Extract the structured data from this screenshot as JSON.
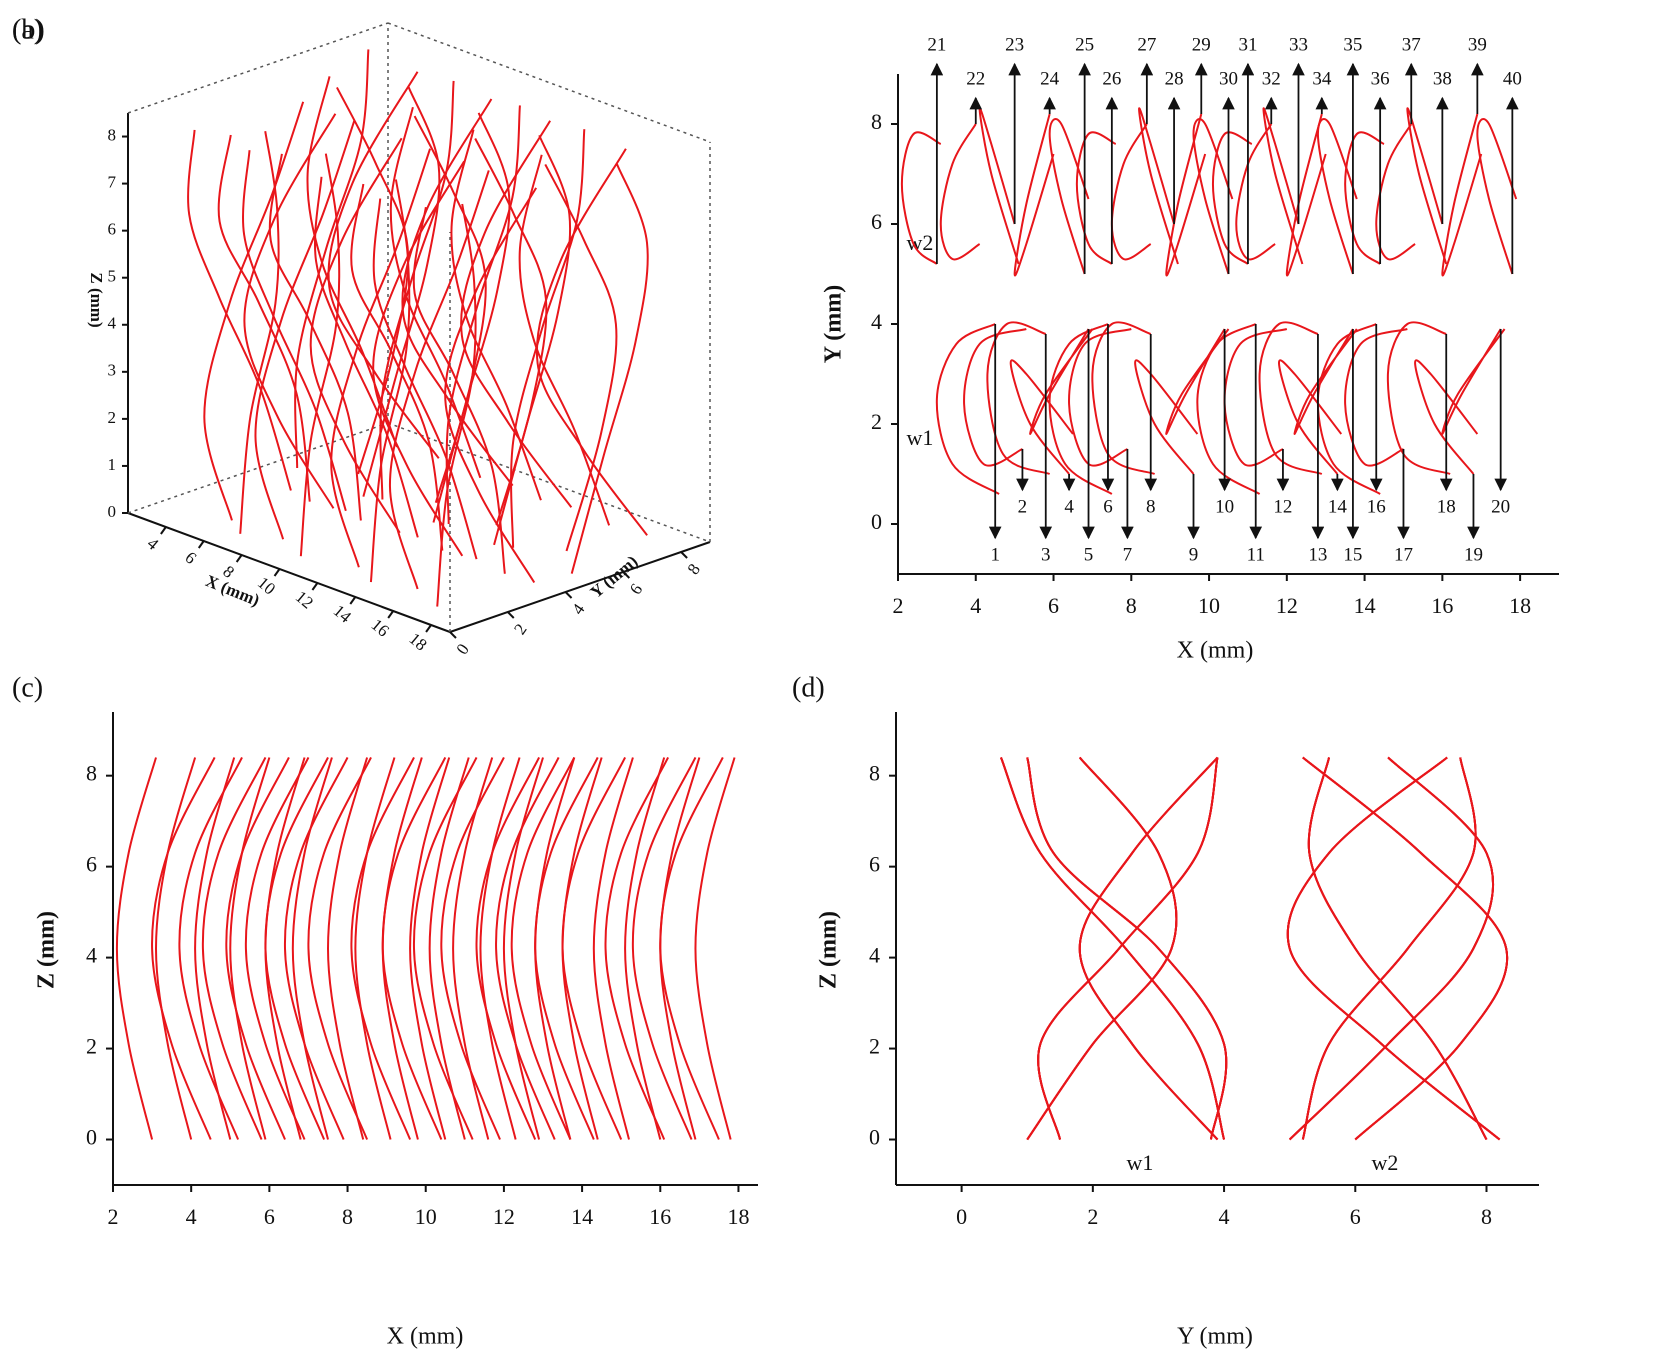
{
  "fibers": {
    "color": "#e8161b",
    "z": [
      0,
      2.1,
      4.2,
      6.3,
      8.4
    ],
    "items": [
      {
        "label": "1",
        "x": [
          4.5,
          3.5,
          3.0,
          3.4,
          4.6
        ],
        "y": [
          4.0,
          3.6,
          2.5,
          1.2,
          0.6
        ]
      },
      {
        "label": "2",
        "x": [
          5.2,
          4.2,
          3.7,
          4.1,
          5.3
        ],
        "y": [
          1.5,
          1.2,
          2.4,
          3.6,
          3.9
        ]
      },
      {
        "label": "3",
        "x": [
          5.8,
          4.8,
          4.3,
          4.7,
          5.9
        ],
        "y": [
          3.8,
          4.0,
          3.0,
          1.4,
          1.0
        ]
      },
      {
        "label": "4",
        "x": [
          6.4,
          5.4,
          4.9,
          5.3,
          6.5
        ],
        "y": [
          1.0,
          2.0,
          3.2,
          3.0,
          1.8
        ]
      },
      {
        "label": "5",
        "x": [
          6.9,
          5.9,
          5.4,
          5.8,
          7.0
        ],
        "y": [
          3.9,
          2.6,
          1.8,
          2.6,
          3.9
        ]
      },
      {
        "label": "6",
        "x": [
          7.4,
          6.4,
          5.9,
          6.3,
          7.5
        ],
        "y": [
          4.0,
          3.6,
          2.5,
          1.2,
          0.6
        ]
      },
      {
        "label": "7",
        "x": [
          7.9,
          6.9,
          6.4,
          6.8,
          8.0
        ],
        "y": [
          1.5,
          1.2,
          2.4,
          3.6,
          3.9
        ]
      },
      {
        "label": "8",
        "x": [
          8.5,
          7.5,
          7.0,
          7.4,
          8.6
        ],
        "y": [
          3.8,
          4.0,
          3.0,
          1.4,
          1.0
        ]
      },
      {
        "label": "9",
        "x": [
          9.6,
          8.6,
          8.1,
          8.5,
          9.7
        ],
        "y": [
          1.0,
          2.0,
          3.2,
          3.0,
          1.8
        ]
      },
      {
        "label": "10",
        "x": [
          10.4,
          9.4,
          8.9,
          9.3,
          10.5
        ],
        "y": [
          3.9,
          2.6,
          1.8,
          2.6,
          3.9
        ]
      },
      {
        "label": "11",
        "x": [
          11.2,
          10.2,
          9.7,
          10.1,
          11.3
        ],
        "y": [
          4.0,
          3.6,
          2.5,
          1.2,
          0.6
        ]
      },
      {
        "label": "12",
        "x": [
          11.9,
          10.9,
          10.4,
          10.8,
          12.0
        ],
        "y": [
          1.5,
          1.2,
          2.4,
          3.6,
          3.9
        ]
      },
      {
        "label": "13",
        "x": [
          12.8,
          11.8,
          11.3,
          11.7,
          12.9
        ],
        "y": [
          3.8,
          4.0,
          3.0,
          1.4,
          1.0
        ]
      },
      {
        "label": "14",
        "x": [
          13.3,
          12.3,
          11.8,
          12.2,
          13.4
        ],
        "y": [
          1.0,
          2.0,
          3.2,
          3.0,
          1.8
        ]
      },
      {
        "label": "15",
        "x": [
          13.7,
          12.7,
          12.2,
          12.6,
          13.8
        ],
        "y": [
          3.9,
          2.6,
          1.8,
          2.6,
          3.9
        ]
      },
      {
        "label": "16",
        "x": [
          14.3,
          13.3,
          12.8,
          13.2,
          14.4
        ],
        "y": [
          4.0,
          3.6,
          2.5,
          1.2,
          0.6
        ]
      },
      {
        "label": "17",
        "x": [
          15.0,
          14.0,
          13.5,
          13.9,
          15.1
        ],
        "y": [
          1.5,
          1.2,
          2.4,
          3.6,
          3.9
        ]
      },
      {
        "label": "18",
        "x": [
          16.1,
          15.1,
          14.6,
          15.0,
          16.2
        ],
        "y": [
          3.8,
          4.0,
          3.0,
          1.4,
          1.0
        ]
      },
      {
        "label": "19",
        "x": [
          16.8,
          15.8,
          15.3,
          15.7,
          16.9
        ],
        "y": [
          1.0,
          2.0,
          3.2,
          3.0,
          1.8
        ]
      },
      {
        "label": "20",
        "x": [
          17.5,
          16.5,
          16.0,
          16.4,
          17.6
        ],
        "y": [
          3.9,
          2.6,
          1.8,
          2.6,
          3.9
        ]
      },
      {
        "label": "21",
        "x": [
          3.0,
          2.4,
          2.1,
          2.4,
          3.1
        ],
        "y": [
          5.2,
          5.6,
          6.8,
          7.8,
          7.6
        ]
      },
      {
        "label": "22",
        "x": [
          4.0,
          3.4,
          3.1,
          3.4,
          4.1
        ],
        "y": [
          8.0,
          7.2,
          6.0,
          5.3,
          5.6
        ]
      },
      {
        "label": "23",
        "x": [
          5.0,
          4.4,
          4.1,
          4.4,
          5.1
        ],
        "y": [
          6.0,
          7.6,
          8.3,
          7.0,
          5.2
        ]
      },
      {
        "label": "24",
        "x": [
          5.9,
          5.3,
          5.0,
          5.3,
          6.0
        ],
        "y": [
          8.2,
          6.4,
          5.0,
          5.6,
          7.4
        ]
      },
      {
        "label": "25",
        "x": [
          6.8,
          6.2,
          5.9,
          6.2,
          6.9
        ],
        "y": [
          5.0,
          6.5,
          7.8,
          8.0,
          6.5
        ]
      },
      {
        "label": "26",
        "x": [
          7.5,
          6.9,
          6.6,
          6.9,
          7.6
        ],
        "y": [
          5.2,
          5.6,
          6.8,
          7.8,
          7.6
        ]
      },
      {
        "label": "27",
        "x": [
          8.4,
          7.8,
          7.5,
          7.8,
          8.5
        ],
        "y": [
          8.0,
          7.2,
          6.0,
          5.3,
          5.6
        ]
      },
      {
        "label": "28",
        "x": [
          9.1,
          8.5,
          8.2,
          8.5,
          9.2
        ],
        "y": [
          6.0,
          7.6,
          8.3,
          7.0,
          5.2
        ]
      },
      {
        "label": "29",
        "x": [
          9.8,
          9.2,
          8.9,
          9.2,
          9.9
        ],
        "y": [
          8.2,
          6.4,
          5.0,
          5.6,
          7.4
        ]
      },
      {
        "label": "30",
        "x": [
          10.5,
          9.9,
          9.6,
          9.9,
          10.6
        ],
        "y": [
          5.0,
          6.5,
          7.8,
          8.0,
          6.5
        ]
      },
      {
        "label": "31",
        "x": [
          11.0,
          10.4,
          10.1,
          10.4,
          11.1
        ],
        "y": [
          5.2,
          5.6,
          6.8,
          7.8,
          7.6
        ]
      },
      {
        "label": "32",
        "x": [
          11.6,
          11.0,
          10.7,
          11.0,
          11.7
        ],
        "y": [
          8.0,
          7.2,
          6.0,
          5.3,
          5.6
        ]
      },
      {
        "label": "33",
        "x": [
          12.3,
          11.7,
          11.4,
          11.7,
          12.4
        ],
        "y": [
          6.0,
          7.6,
          8.3,
          7.0,
          5.2
        ]
      },
      {
        "label": "34",
        "x": [
          12.9,
          12.3,
          12.0,
          12.3,
          13.0
        ],
        "y": [
          8.2,
          6.4,
          5.0,
          5.6,
          7.4
        ]
      },
      {
        "label": "35",
        "x": [
          13.7,
          13.1,
          12.8,
          13.1,
          13.8
        ],
        "y": [
          5.0,
          6.5,
          7.8,
          8.0,
          6.5
        ]
      },
      {
        "label": "36",
        "x": [
          14.4,
          13.8,
          13.5,
          13.8,
          14.5
        ],
        "y": [
          5.2,
          5.6,
          6.8,
          7.8,
          7.6
        ]
      },
      {
        "label": "37",
        "x": [
          15.2,
          14.6,
          14.3,
          14.6,
          15.3
        ],
        "y": [
          8.0,
          7.2,
          6.0,
          5.3,
          5.6
        ]
      },
      {
        "label": "38",
        "x": [
          16.0,
          15.4,
          15.1,
          15.4,
          16.1
        ],
        "y": [
          6.0,
          7.6,
          8.3,
          7.0,
          5.2
        ]
      },
      {
        "label": "39",
        "x": [
          16.9,
          16.3,
          16.0,
          16.3,
          17.0
        ],
        "y": [
          8.2,
          6.4,
          5.0,
          5.6,
          7.4
        ]
      },
      {
        "label": "40",
        "x": [
          17.8,
          17.2,
          16.9,
          17.2,
          17.9
        ],
        "y": [
          5.0,
          6.5,
          7.8,
          8.0,
          6.5
        ]
      }
    ]
  },
  "chart_data": [
    {
      "type": "line3d",
      "panel_label": "(a)",
      "x_label": "X (mm)",
      "y_label": "Y (mm)",
      "z_label": "Z (mm)",
      "xlim": [
        2,
        19
      ],
      "ylim": [
        0,
        9
      ],
      "zlim": [
        0,
        8.5
      ],
      "xticks": [
        4,
        6,
        8,
        10,
        12,
        14,
        16,
        18
      ],
      "yticks": [
        0,
        2,
        4,
        6,
        8
      ],
      "zticks": [
        0,
        1,
        2,
        3,
        4,
        5,
        6,
        7,
        8
      ]
    },
    {
      "type": "trajectory",
      "panel_label": "(b)",
      "x_label": "X (mm)",
      "y_label": "Y (mm)",
      "horizontal": "x",
      "vertical": "y",
      "xlim": [
        2,
        19
      ],
      "ylim": [
        -1,
        9
      ],
      "xticks": [
        2,
        4,
        6,
        8,
        10,
        12,
        14,
        16,
        18
      ],
      "yticks": [
        0,
        2,
        4,
        6,
        8
      ],
      "annotations": [
        "w2",
        "w1"
      ]
    },
    {
      "type": "line",
      "panel_label": "(c)",
      "x_label": "X (mm)",
      "y_label": "Z (mm)",
      "horizontal": "x",
      "vertical": "z",
      "xlim": [
        2,
        18.5
      ],
      "ylim": [
        -1,
        9.4
      ],
      "xticks": [
        2,
        4,
        6,
        8,
        10,
        12,
        14,
        16,
        18
      ],
      "yticks": [
        0,
        2,
        4,
        6,
        8
      ]
    },
    {
      "type": "line",
      "panel_label": "(d)",
      "x_label": "Y (mm)",
      "y_label": "Z (mm)",
      "horizontal": "y",
      "vertical": "z",
      "xlim": [
        -1,
        8.8
      ],
      "ylim": [
        -1,
        9.4
      ],
      "xticks": [
        0,
        2,
        4,
        6,
        8
      ],
      "yticks": [
        0,
        2,
        4,
        6,
        8
      ],
      "annotations": [
        "w1",
        "w2"
      ]
    }
  ]
}
